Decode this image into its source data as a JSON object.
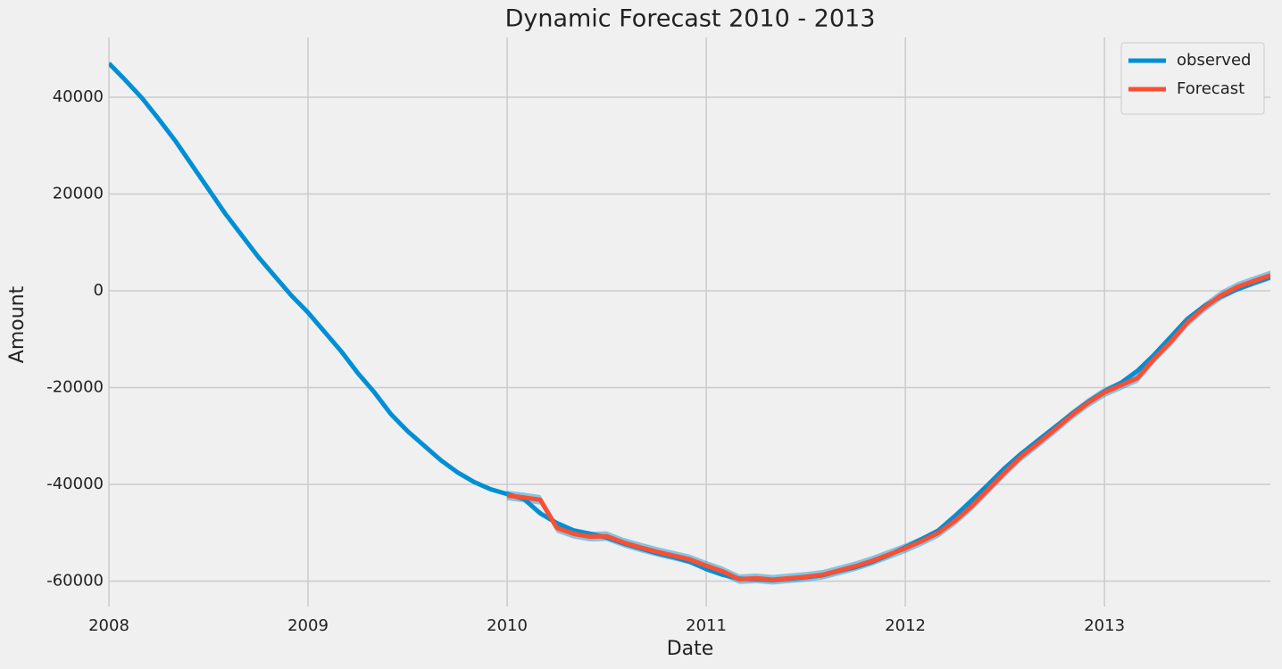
{
  "chart_data": {
    "type": "line",
    "title": "Dynamic Forecast 2010 - 2013",
    "x_label": "Date",
    "y_label": "Amount",
    "x": [
      "2008-01",
      "2008-02",
      "2008-03",
      "2008-04",
      "2008-05",
      "2008-06",
      "2008-07",
      "2008-08",
      "2008-09",
      "2008-10",
      "2008-11",
      "2008-12",
      "2009-01",
      "2009-02",
      "2009-03",
      "2009-04",
      "2009-05",
      "2009-06",
      "2009-07",
      "2009-08",
      "2009-09",
      "2009-10",
      "2009-11",
      "2009-12",
      "2010-01",
      "2010-02",
      "2010-03",
      "2010-04",
      "2010-05",
      "2010-06",
      "2010-07",
      "2010-08",
      "2010-09",
      "2010-10",
      "2010-11",
      "2010-12",
      "2011-01",
      "2011-02",
      "2011-03",
      "2011-04",
      "2011-05",
      "2011-06",
      "2011-07",
      "2011-08",
      "2011-09",
      "2011-10",
      "2011-11",
      "2011-12",
      "2012-01",
      "2012-02",
      "2012-03",
      "2012-04",
      "2012-05",
      "2012-06",
      "2012-07",
      "2012-08",
      "2012-09",
      "2012-10",
      "2012-11",
      "2012-12",
      "2013-01",
      "2013-02",
      "2013-03",
      "2013-04",
      "2013-05",
      "2013-06",
      "2013-07",
      "2013-08",
      "2013-09",
      "2013-10",
      "2013-11"
    ],
    "series": [
      {
        "name": "observed",
        "color": "#008fd5",
        "values": [
          47000,
          43500,
          39800,
          35500,
          31000,
          26000,
          21000,
          16000,
          11500,
          7000,
          3000,
          -1000,
          -4500,
          -8500,
          -12500,
          -17000,
          -21000,
          -25500,
          -29000,
          -32000,
          -35000,
          -37500,
          -39500,
          -41000,
          -42000,
          -43000,
          -46000,
          -48000,
          -49500,
          -50200,
          -51000,
          -52200,
          -53200,
          -54200,
          -55000,
          -56000,
          -57500,
          -58700,
          -59500,
          -59600,
          -59800,
          -59500,
          -59200,
          -58800,
          -57900,
          -57100,
          -56000,
          -54600,
          -53000,
          -51300,
          -49500,
          -46500,
          -43300,
          -40000,
          -36600,
          -33600,
          -30900,
          -28200,
          -25500,
          -23000,
          -20800,
          -19000,
          -16500,
          -13200,
          -9500,
          -5800,
          -3200,
          -1200,
          300,
          1600,
          2800
        ]
      },
      {
        "name": "Forecast",
        "color": "#fc4f30",
        "values": [
          null,
          null,
          null,
          null,
          null,
          null,
          null,
          null,
          null,
          null,
          null,
          null,
          null,
          null,
          null,
          null,
          null,
          null,
          null,
          null,
          null,
          null,
          null,
          null,
          -42300,
          -42700,
          -43200,
          -49000,
          -50200,
          -50800,
          -50700,
          -52000,
          -53000,
          -53900,
          -54700,
          -55500,
          -56800,
          -58000,
          -59600,
          -59400,
          -59700,
          -59400,
          -59100,
          -58700,
          -57800,
          -56900,
          -55800,
          -54500,
          -53200,
          -51700,
          -50000,
          -47500,
          -44500,
          -41000,
          -37500,
          -34200,
          -31500,
          -28700,
          -25800,
          -23200,
          -21000,
          -19500,
          -18000,
          -14000,
          -10500,
          -6500,
          -3500,
          -1000,
          800,
          2000,
          3200
        ]
      }
    ],
    "band": {
      "color": "#008fd5",
      "lower": [
        null,
        null,
        null,
        null,
        null,
        null,
        null,
        null,
        null,
        null,
        null,
        null,
        null,
        null,
        null,
        null,
        null,
        null,
        null,
        null,
        null,
        null,
        null,
        null,
        -43300,
        -43700,
        -44200,
        -50000,
        -51200,
        -51800,
        -51700,
        -53000,
        -54000,
        -54900,
        -55700,
        -56500,
        -57800,
        -59000,
        -60600,
        -60400,
        -60700,
        -60400,
        -60100,
        -59700,
        -58800,
        -57900,
        -56800,
        -55500,
        -54200,
        -52700,
        -51000,
        -48500,
        -45500,
        -42000,
        -38500,
        -35200,
        -32500,
        -29700,
        -26800,
        -24200,
        -22000,
        -20500,
        -19000,
        -15000,
        -11500,
        -7500,
        -4500,
        -2000,
        -200,
        1000,
        2200
      ],
      "upper": [
        null,
        null,
        null,
        null,
        null,
        null,
        null,
        null,
        null,
        null,
        null,
        null,
        null,
        null,
        null,
        null,
        null,
        null,
        null,
        null,
        null,
        null,
        null,
        null,
        -41300,
        -41700,
        -42200,
        -48000,
        -49200,
        -49800,
        -49700,
        -51000,
        -52000,
        -52900,
        -53700,
        -54500,
        -55800,
        -57000,
        -58600,
        -58400,
        -58700,
        -58400,
        -58100,
        -57700,
        -56800,
        -55900,
        -54800,
        -53500,
        -52200,
        -50700,
        -49000,
        -46500,
        -43500,
        -40000,
        -36500,
        -33200,
        -30500,
        -27700,
        -24800,
        -22200,
        -20000,
        -18500,
        -17000,
        -13000,
        -9500,
        -5500,
        -2500,
        0,
        1800,
        3000,
        4200
      ]
    },
    "xlim": [
      "2008-01",
      "2013-11"
    ],
    "xticks": [
      2008,
      2009,
      2010,
      2011,
      2012,
      2013
    ],
    "ylim": [
      -65250,
      52350
    ],
    "yticks": [
      -60000,
      -40000,
      -20000,
      0,
      20000,
      40000
    ],
    "grid": true,
    "legend": "upper right"
  }
}
